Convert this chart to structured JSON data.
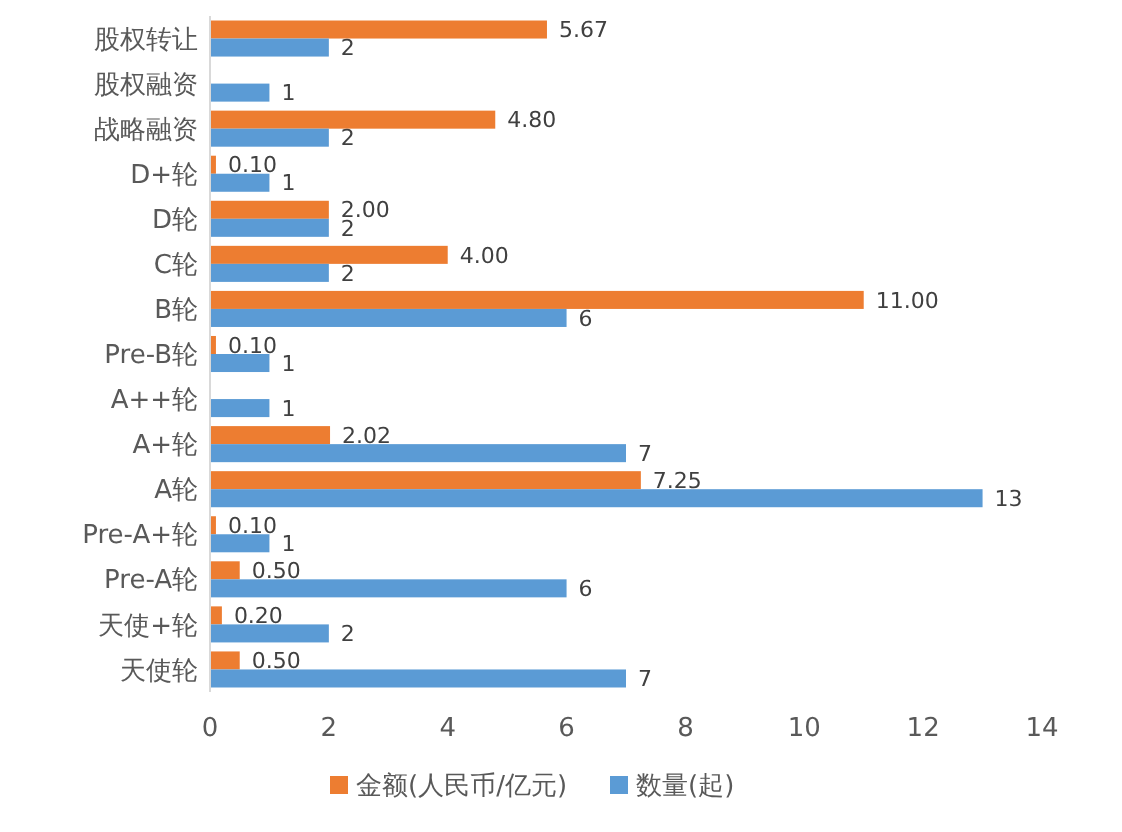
{
  "chart_data": {
    "type": "bar",
    "orientation": "horizontal",
    "categories": [
      "股权转让",
      "股权融资",
      "战略融资",
      "D+轮",
      "D轮",
      "C轮",
      "B轮",
      "Pre-B轮",
      "A++轮",
      "A+轮",
      "A轮",
      "Pre-A+轮",
      "Pre-A轮",
      "天使+轮",
      "天使轮"
    ],
    "series": [
      {
        "name": "金额(人民币/亿元)",
        "color": "#ed7d31",
        "values": [
          5.67,
          null,
          4.8,
          0.1,
          2,
          4,
          11,
          0.1,
          null,
          2.02,
          7.25,
          0.1,
          0.5,
          0.2,
          0.5
        ],
        "value_labels": [
          "5.67",
          null,
          "4.80",
          "0.10",
          "2.00",
          "4.00",
          "11.00",
          "0.10",
          null,
          "2.02",
          "7.25",
          "0.10",
          "0.50",
          "0.20",
          "0.50"
        ]
      },
      {
        "name": "数量(起)",
        "color": "#5b9bd5",
        "values": [
          2,
          1,
          2,
          1,
          2,
          2,
          6,
          1,
          1,
          7,
          13,
          1,
          6,
          2,
          7
        ],
        "value_labels": [
          "2",
          "1",
          "2",
          "1",
          "2",
          "2",
          "6",
          "1",
          "1",
          "7",
          "13",
          "1",
          "6",
          "2",
          "7"
        ]
      }
    ],
    "xlim": [
      0,
      14
    ],
    "xticks": [
      0,
      2,
      4,
      6,
      8,
      10,
      12,
      14
    ],
    "grid": false,
    "legend": "bottom"
  }
}
